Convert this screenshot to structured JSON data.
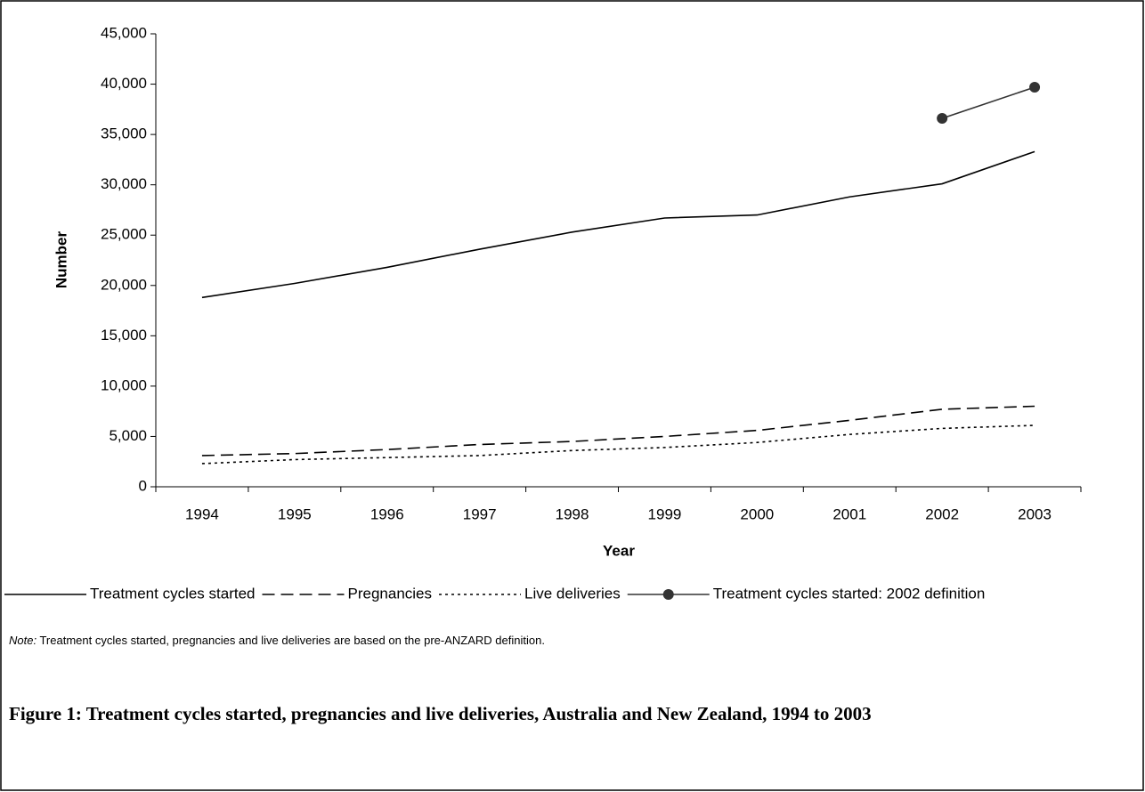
{
  "chart_data": {
    "type": "line",
    "y_label": "Number",
    "x_label": "Year",
    "categories": [
      "1994",
      "1995",
      "1996",
      "1997",
      "1998",
      "1999",
      "2000",
      "2001",
      "2002",
      "2003"
    ],
    "series": [
      {
        "name": "Treatment cycles started",
        "color": "#000000",
        "style": "solid",
        "values": [
          18800,
          20200,
          21800,
          23600,
          25300,
          26700,
          27000,
          28800,
          30100,
          33300
        ]
      },
      {
        "name": "Pregnancies",
        "color": "#000000",
        "style": "dashed",
        "values": [
          3100,
          3300,
          3700,
          4200,
          4500,
          5000,
          5600,
          6600,
          7700,
          8000
        ]
      },
      {
        "name": "Live deliveries",
        "color": "#000000",
        "style": "dotted",
        "values": [
          2300,
          2700,
          2900,
          3100,
          3600,
          3900,
          4400,
          5200,
          5800,
          6100
        ]
      },
      {
        "name": "Treatment cycles started: 2002 definition",
        "color": "#333333",
        "style": "solid",
        "marker": "circle",
        "values": [
          null,
          null,
          null,
          null,
          null,
          null,
          null,
          null,
          36600,
          39700
        ]
      }
    ],
    "ylim": [
      0,
      45000
    ],
    "yticks": [
      0,
      {
        "value": 5000,
        "label": "5,000"
      },
      {
        "value": 10000,
        "label": "10,000"
      },
      {
        "value": 15000,
        "label": "15,000"
      },
      {
        "value": 20000,
        "label": "20,000"
      },
      {
        "value": 25000,
        "label": "25,000"
      },
      {
        "value": 30000,
        "label": "30,000"
      },
      {
        "value": 35000,
        "label": "35,000"
      },
      {
        "value": 40000,
        "label": "40,000"
      },
      {
        "value": 45000,
        "label": "45,000"
      }
    ],
    "grid": false,
    "legend": "bottom",
    "note_label": "Note:",
    "note": "Treatment cycles started, pregnancies and live deliveries are based on the pre-ANZARD definition.",
    "caption": "Figure 1: Treatment cycles started, pregnancies and live deliveries, Australia and New Zealand, 1994 to 2003"
  }
}
